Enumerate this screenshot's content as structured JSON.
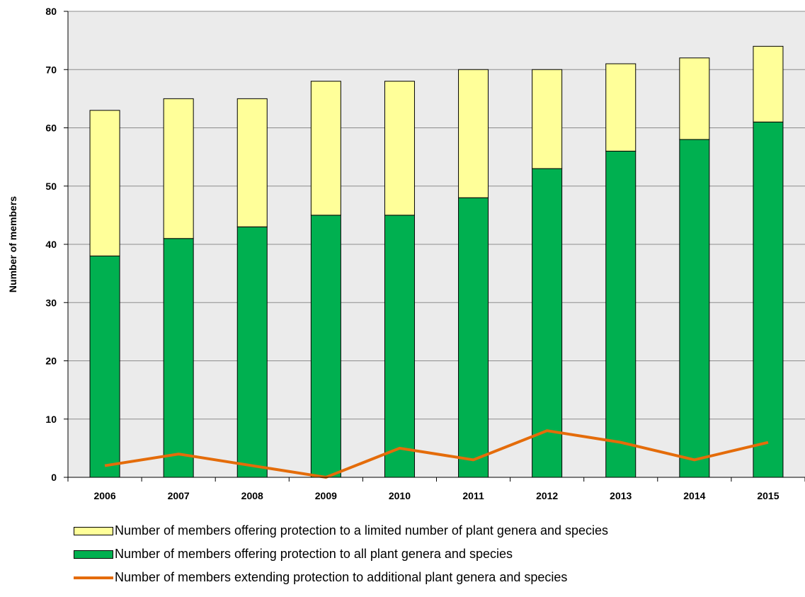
{
  "chart_data": {
    "type": "bar",
    "stacked": true,
    "categories": [
      "2006",
      "2007",
      "2008",
      "2009",
      "2010",
      "2011",
      "2012",
      "2013",
      "2014",
      "2015"
    ],
    "series": [
      {
        "name": "Number of members offering protection to all plant genera and species",
        "kind": "bar",
        "color": "#00b050",
        "values": [
          38,
          41,
          43,
          45,
          45,
          48,
          53,
          56,
          58,
          61
        ]
      },
      {
        "name": "Number of members offering protection to a limited number of plant genera and species",
        "kind": "bar",
        "color": "#ffff99",
        "values": [
          25,
          24,
          22,
          23,
          23,
          22,
          17,
          15,
          14,
          13
        ]
      },
      {
        "name": "Number of members extending protection to additional plant genera and species",
        "kind": "line",
        "color": "#e46c0a",
        "values": [
          2,
          4,
          2,
          0,
          5,
          3,
          8,
          6,
          3,
          6
        ]
      }
    ],
    "ylabel": "Number of members",
    "xlabel": "",
    "ylim": [
      0,
      80
    ],
    "yticks": [
      "0",
      "10",
      "20",
      "30",
      "40",
      "50",
      "60",
      "70",
      "80"
    ],
    "grid": true,
    "plot_background": "#ebebeb",
    "legend_position": "bottom"
  },
  "legend": {
    "limited": "Number of members offering protection to a limited number of plant genera and species",
    "all": "Number of members offering protection to all plant genera and species",
    "extending": "Number of members extending protection to additional plant genera and species"
  }
}
